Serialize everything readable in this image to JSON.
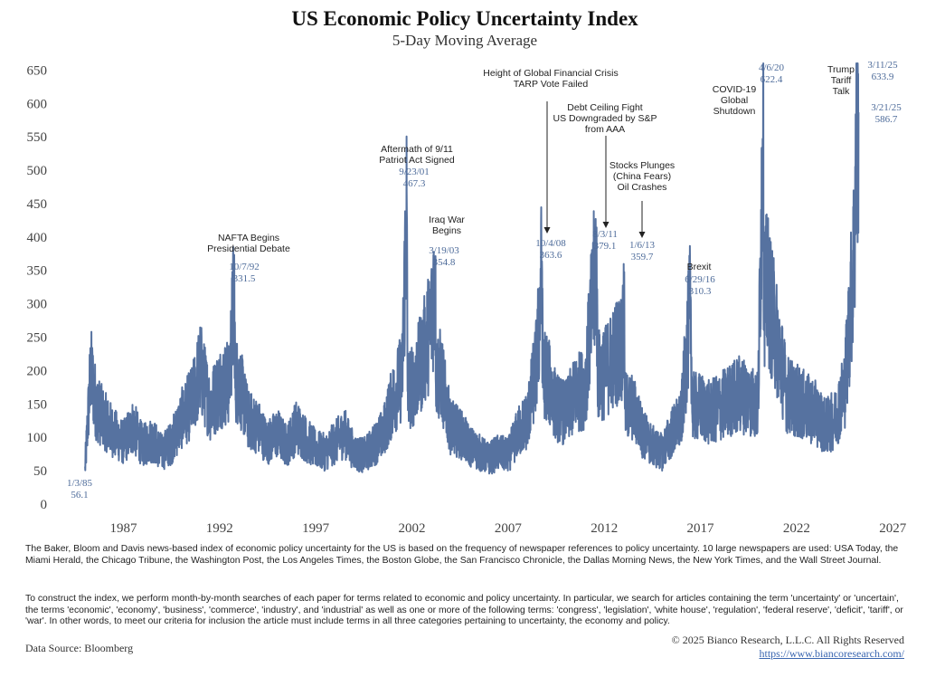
{
  "chart_data": {
    "type": "line",
    "title": "US Economic Policy Uncertainty Index",
    "subtitle": "5-Day Moving Average",
    "color": "#5672a0",
    "xlim": [
      1983.5,
      2027.6
    ],
    "ylim": [
      0,
      660
    ],
    "x_ticks": [
      1987,
      1992,
      1997,
      2002,
      2007,
      2012,
      2017,
      2022,
      2027
    ],
    "y_ticks": [
      0,
      50,
      100,
      150,
      200,
      250,
      300,
      350,
      400,
      450,
      500,
      550,
      600,
      650
    ],
    "grid": false,
    "series": [
      {
        "x": [
          1985.01,
          1985.3,
          1985.6,
          1986.0,
          1986.5,
          1987.0,
          1987.5,
          1988.0,
          1988.5,
          1989.0,
          1989.5,
          1990.0,
          1990.6,
          1991.0,
          1991.5,
          1992.0,
          1992.5,
          1992.77,
          1993.0,
          1993.5,
          1994.0,
          1994.5,
          1995.0,
          1995.5,
          1996.0,
          1996.5,
          1997.0,
          1997.5,
          1998.0,
          1998.5,
          1999.0,
          1999.5,
          2000.0,
          2000.5,
          2001.0,
          2001.5,
          2001.73,
          2002.0,
          2002.5,
          2003.0,
          2003.21,
          2003.5,
          2004.0,
          2004.5,
          2005.0,
          2005.5,
          2006.0,
          2006.5,
          2007.0,
          2007.5,
          2008.0,
          2008.5,
          2008.76,
          2009.0,
          2009.5,
          2010.0,
          2010.5,
          2011.0,
          2011.59,
          2012.0,
          2012.5,
          2013.0,
          2013.01,
          2013.5,
          2014.0,
          2014.5,
          2015.0,
          2015.5,
          2016.0,
          2016.49,
          2017.0,
          2017.5,
          2018.0,
          2018.5,
          2019.0,
          2019.5,
          2020.0,
          2020.26,
          2020.5,
          2021.0,
          2021.5,
          2022.0,
          2022.5,
          2023.0,
          2023.5,
          2024.0,
          2024.5,
          2024.8,
          2025.0,
          2025.19,
          2025.22
        ],
        "y": [
          56.1,
          205,
          150,
          130,
          110,
          95,
          120,
          90,
          100,
          80,
          95,
          130,
          160,
          210,
          150,
          180,
          190,
          331.5,
          190,
          130,
          120,
          95,
          110,
          90,
          120,
          100,
          85,
          80,
          95,
          110,
          80,
          75,
          90,
          110,
          160,
          200,
          467.3,
          180,
          220,
          280,
          354.8,
          200,
          120,
          110,
          90,
          80,
          70,
          80,
          75,
          110,
          130,
          220,
          363.6,
          200,
          150,
          140,
          170,
          180,
          379.1,
          200,
          230,
          250,
          359.7,
          150,
          110,
          90,
          80,
          110,
          130,
          310.3,
          150,
          140,
          150,
          160,
          170,
          165,
          150,
          622.4,
          330,
          250,
          170,
          160,
          150,
          140,
          120,
          130,
          180,
          300,
          400,
          633.9,
          586.7
        ]
      }
    ],
    "annotations": [
      {
        "x": 1985.01,
        "y": 56.1,
        "date": "1/3/85",
        "value": "56.1"
      },
      {
        "x": 1992.77,
        "y": 331.5,
        "label": [
          "NAFTA Begins",
          "Presidential Debate"
        ],
        "date": "10/7/92",
        "value": "331.5"
      },
      {
        "x": 2001.73,
        "y": 467.3,
        "label": [
          "Aftermath of 9/11",
          "Patriot Act Signed"
        ],
        "date": "9/23/01",
        "value": "467.3"
      },
      {
        "x": 2003.21,
        "y": 354.8,
        "label": [
          "Iraq War",
          "Begins"
        ],
        "date": "3/19/03",
        "value": "354.8"
      },
      {
        "x": 2008.76,
        "y": 363.6,
        "label": [
          "Height of Global Financial Crisis",
          "TARP Vote Failed"
        ],
        "date": "10/4/08",
        "value": "363.6"
      },
      {
        "x": 2011.59,
        "y": 379.1,
        "label": [
          "Debt Ceiling Fight",
          "US Downgraded by S&P",
          "from AAA"
        ],
        "date": "8/3/11",
        "value": "379.1"
      },
      {
        "x": 2013.01,
        "y": 359.7,
        "label": [
          "Stocks Plunges",
          "(China Fears)",
          "Oil Crashes"
        ],
        "date": "1/6/13",
        "value": "359.7"
      },
      {
        "x": 2016.49,
        "y": 310.3,
        "label": [
          "Brexit"
        ],
        "date": "6/29/16",
        "value": "310.3"
      },
      {
        "x": 2020.26,
        "y": 622.4,
        "label": [
          "COVID-19",
          "Global",
          "Shutdown"
        ],
        "date": "4/6/20",
        "value": "622.4"
      },
      {
        "x": 2025.19,
        "y": 633.9,
        "label": [
          "Trump",
          "Tariff",
          "Talk"
        ],
        "date": "3/11/25",
        "value": "633.9"
      },
      {
        "x": 2025.22,
        "y": 586.7,
        "date": "3/21/25",
        "value": "586.7"
      }
    ]
  },
  "notes": {
    "paragraph1": "The Baker, Bloom and Davis news-based index of economic policy uncertainty for the US is based on the frequency of newspaper references to policy uncertainty. 10 large newspapers are used: USA Today, the Miami Herald, the Chicago Tribune, the Washington Post, the Los Angeles Times, the Boston Globe, the San Francisco Chronicle, the Dallas Morning News, the New York Times, and the Wall Street Journal.",
    "paragraph2": "To construct the index, we perform month-by-month searches of each paper for terms related to economic and policy uncertainty. In particular, we search for articles containing the term 'uncertainty' or 'uncertain', the terms 'economic', 'economy', 'business', 'commerce', 'industry', and 'industrial' as well as one or more of the following terms: 'congress', 'legislation', 'white house', 'regulation', 'federal reserve', 'deficit', 'tariff', or 'war'. In other words, to meet our criteria for inclusion the article must include terms in all three categories pertaining to uncertainty, the economy and policy."
  },
  "footer": {
    "source": "Data Source: Bloomberg",
    "copyright": "© 2025  Bianco Research, L.L.C. All Rights Reserved",
    "url": "https://www.biancoresearch.com/"
  }
}
